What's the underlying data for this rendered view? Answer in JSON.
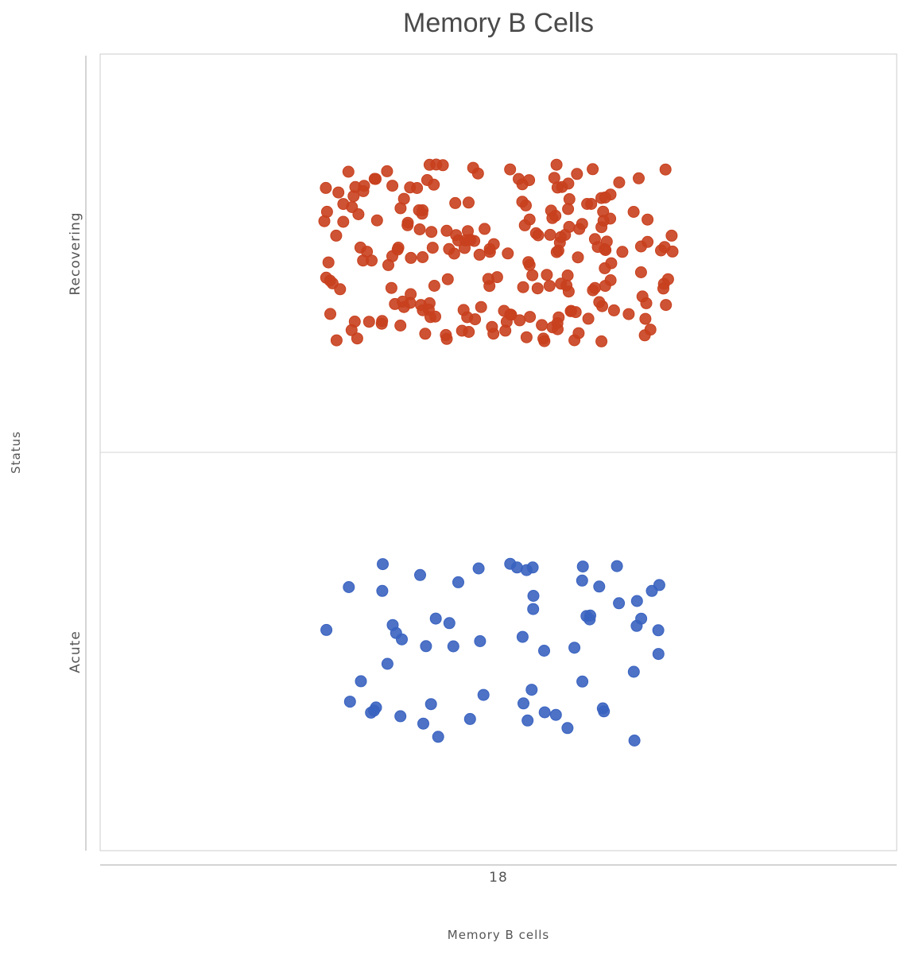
{
  "chart_data": {
    "type": "scatter",
    "title": "Memory B Cells",
    "xlabel": "Memory B cells",
    "ylabel": "Status",
    "x_ticks": [
      "18"
    ],
    "y_categories": [
      "Recovering",
      "Acute"
    ],
    "grid": false,
    "legend": "none",
    "series": [
      {
        "category": "Recovering",
        "color": "#c8401e",
        "count": 220
      },
      {
        "category": "Acute",
        "color": "#3a63c0",
        "count": 62
      }
    ]
  }
}
